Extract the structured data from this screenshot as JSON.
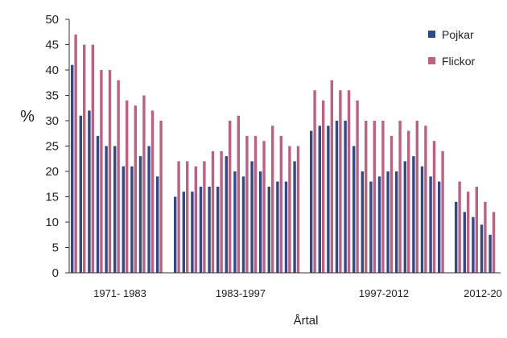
{
  "chart_data": {
    "type": "bar",
    "xlabel": "Årtal",
    "ylabel": "%",
    "ylim": [
      0,
      50
    ],
    "yticks": [
      0,
      5,
      10,
      15,
      20,
      25,
      30,
      35,
      40,
      45,
      50
    ],
    "grid": false,
    "legend_position": "top-right",
    "periods": [
      {
        "label": "1971- 1983",
        "series": [
          {
            "name": "Pojkar",
            "color": "#2e4a87",
            "values": [
              41,
              31,
              32,
              27,
              25,
              25,
              21,
              21,
              23,
              25,
              19
            ]
          },
          {
            "name": "Flickor",
            "color": "#c0607e",
            "values": [
              47,
              45,
              45,
              40,
              40,
              38,
              34,
              33,
              35,
              32,
              30
            ]
          }
        ]
      },
      {
        "label": "1983-1997",
        "series": [
          {
            "name": "Pojkar",
            "color": "#2e4a87",
            "values": [
              15,
              16,
              16,
              17,
              17,
              17,
              23,
              20,
              19,
              22,
              20,
              17,
              18,
              18,
              22
            ]
          },
          {
            "name": "Flickor",
            "color": "#c0607e",
            "values": [
              22,
              22,
              21,
              22,
              24,
              24,
              30,
              31,
              27,
              27,
              26,
              29,
              27,
              25,
              25
            ]
          }
        ]
      },
      {
        "label": "1997-2012",
        "series": [
          {
            "name": "Pojkar",
            "color": "#2e4a87",
            "values": [
              28,
              29,
              29,
              30,
              30,
              25,
              20,
              18,
              19,
              20,
              20,
              22,
              23,
              21,
              19,
              18
            ]
          },
          {
            "name": "Flickor",
            "color": "#c0607e",
            "values": [
              36,
              34,
              38,
              36,
              36,
              34,
              30,
              30,
              30,
              27,
              30,
              28,
              30,
              29,
              26,
              24
            ]
          }
        ]
      },
      {
        "label": "2012-20",
        "series": [
          {
            "name": "Pojkar",
            "color": "#2e4a87",
            "values": [
              14,
              12,
              11,
              9.5,
              7.5
            ]
          },
          {
            "name": "Flickor",
            "color": "#c0607e",
            "values": [
              18,
              16,
              17,
              14,
              12
            ]
          }
        ]
      }
    ],
    "legend": [
      {
        "name": "Pojkar",
        "color": "#2e4a87"
      },
      {
        "name": "Flickor",
        "color": "#c0607e"
      }
    ]
  }
}
